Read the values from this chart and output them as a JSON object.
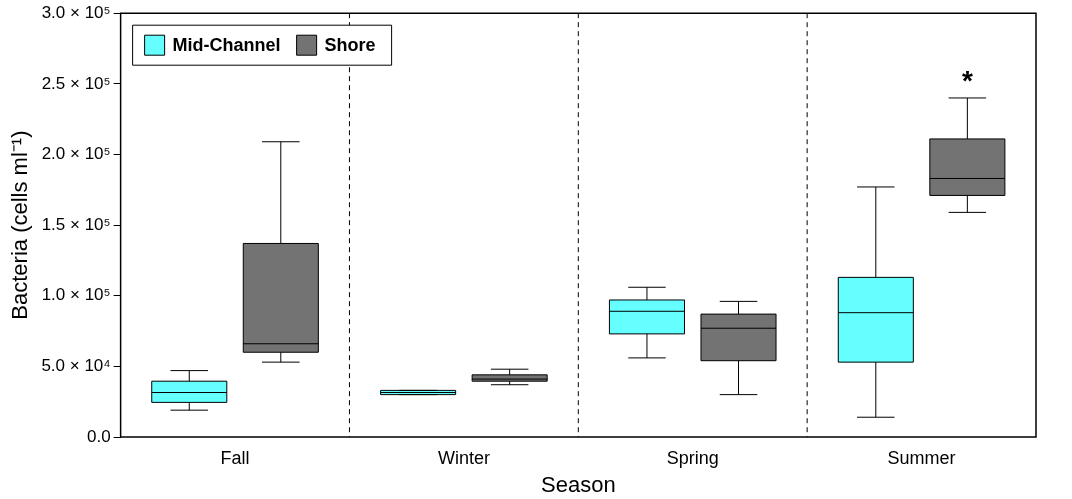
{
  "chart_data": {
    "type": "box",
    "categories": [
      "Fall",
      "Winter",
      "Spring",
      "Summer"
    ],
    "series": [
      {
        "name": "Mid-Channel",
        "color": "#66ffff",
        "boxes": [
          {
            "low": 19000,
            "q1": 24500,
            "median": 31500,
            "q3": 39500,
            "high": 47000
          },
          {
            "low": 30000,
            "q1": 30000,
            "median": 31500,
            "q3": 33000,
            "high": 33000
          },
          {
            "low": 56000,
            "q1": 73000,
            "median": 89000,
            "q3": 97000,
            "high": 106000
          },
          {
            "low": 14000,
            "q1": 53000,
            "median": 88000,
            "q3": 113000,
            "high": 177000
          }
        ]
      },
      {
        "name": "Shore",
        "color": "#737373",
        "boxes": [
          {
            "low": 53000,
            "q1": 60000,
            "median": 66000,
            "q3": 137000,
            "high": 209000
          },
          {
            "low": 37000,
            "q1": 39500,
            "median": 41000,
            "q3": 44000,
            "high": 48000
          },
          {
            "low": 30000,
            "q1": 54000,
            "median": 77000,
            "q3": 87000,
            "high": 96000
          },
          {
            "low": 159000,
            "q1": 171000,
            "median": 183000,
            "q3": 211000,
            "high": 240000
          }
        ]
      }
    ],
    "ylim": [
      0,
      300000
    ],
    "yticks": [
      {
        "value": 0,
        "label": "0.0"
      },
      {
        "value": 50000,
        "label": "5.0 × 10⁴"
      },
      {
        "value": 100000,
        "label": "1.0 × 10⁵"
      },
      {
        "value": 150000,
        "label": "1.5 × 10⁵"
      },
      {
        "value": 200000,
        "label": "2.0 × 10⁵"
      },
      {
        "value": 250000,
        "label": "2.5 × 10⁵"
      },
      {
        "value": 300000,
        "label": "3.0 × 10⁵"
      }
    ],
    "xlabel": "Season",
    "ylabel": "Bacteria (cells ml⁻¹)",
    "legend": "top left",
    "grid": "x",
    "annotations": [
      "*"
    ]
  }
}
